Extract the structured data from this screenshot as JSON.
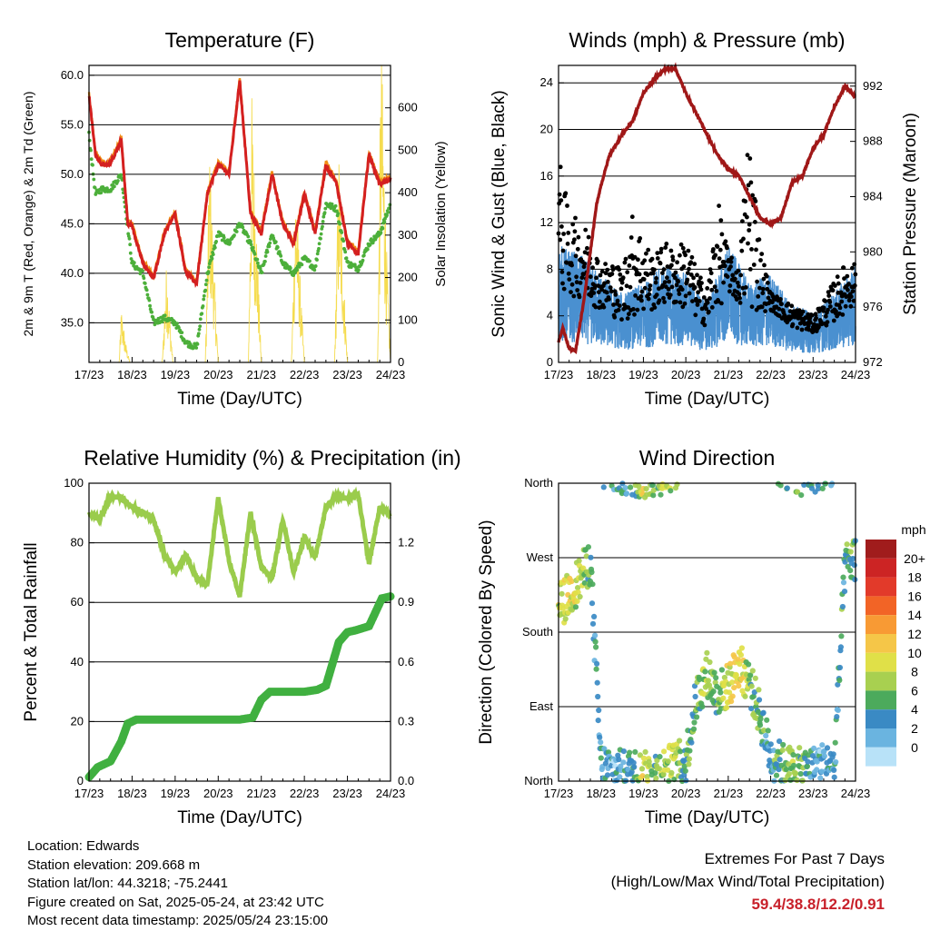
{
  "info": {
    "location": "Location: Edwards",
    "elevation": "Station elevation: 209.668 m",
    "latlon": "Station lat/lon: 44.3218; -75.2441",
    "created": "Figure created on Sat, 2025-05-24, at 23:42 UTC",
    "latest": "Most recent data timestamp: 2025/05/24 23:15:00"
  },
  "extremes": {
    "title": "Extremes For Past 7 Days",
    "subtitle": "(High/Low/Max Wind/Total Precipitation)",
    "values": "59.4/38.8/12.2/0.91"
  },
  "colors": {
    "temp_red": "#d42020",
    "temp_orange": "#f08c14",
    "dewpoint_green": "#4caf3a",
    "solar_yellow": "#f5dc50",
    "wind_blue": "#4a90d0",
    "gust_black": "#000000",
    "pressure_maroon": "#a01818",
    "rh_lightgreen": "#9acc4c",
    "precip_green": "#40b040"
  },
  "chart_data": [
    {
      "type": "line",
      "title": "Temperature (F)",
      "xlabel": "Time (Day/UTC)",
      "ylabel": "2m & 9m T (Red, Orange) & 2m Td (Green)",
      "y2label": "Solar Insolation (Yellow)",
      "categories": [
        "17/23",
        "18/23",
        "19/23",
        "20/23",
        "21/23",
        "22/23",
        "23/23",
        "24/23"
      ],
      "y_ticks": [
        "35.0",
        "40.0",
        "45.0",
        "50.0",
        "55.0",
        "60.0"
      ],
      "y2_ticks": [
        "0",
        "100",
        "200",
        "300",
        "400",
        "500",
        "600"
      ],
      "ylim": [
        31.0,
        61.0
      ],
      "y2lim": [
        0,
        700
      ],
      "grid": true,
      "series": [
        {
          "name": "2m T",
          "x": [
            0,
            0.15,
            0.3,
            0.45,
            0.6,
            0.75,
            0.9,
            1,
            1.25,
            1.5,
            1.75,
            2,
            2.25,
            2.5,
            2.75,
            3,
            3.25,
            3.5,
            3.75,
            4,
            4.25,
            4.5,
            4.75,
            5,
            5.25,
            5.5,
            5.75,
            6,
            6.25,
            6.5,
            6.75,
            7
          ],
          "values": [
            58.0,
            52.0,
            51.0,
            50.8,
            52.0,
            53.5,
            45.0,
            44.8,
            41.0,
            39.5,
            44.0,
            46.0,
            40.0,
            39.0,
            48.0,
            51.0,
            50.0,
            59.5,
            46.0,
            44.0,
            50.0,
            45.0,
            43.0,
            48.0,
            44.0,
            51.0,
            49.0,
            43.0,
            42.0,
            52.0,
            49.0,
            49.5
          ]
        },
        {
          "name": "2m Td",
          "x": [
            0,
            0.15,
            0.3,
            0.5,
            0.75,
            1,
            1.25,
            1.5,
            1.75,
            2,
            2.25,
            2.5,
            2.75,
            3,
            3.25,
            3.5,
            3.75,
            4,
            4.25,
            4.5,
            4.75,
            5,
            5.25,
            5.5,
            5.75,
            6,
            6.25,
            6.5,
            6.75,
            7
          ],
          "values": [
            54.0,
            48.0,
            48.5,
            48.5,
            50.0,
            41.0,
            40.0,
            35.0,
            35.5,
            35.0,
            33.0,
            32.5,
            40.0,
            44.0,
            43.0,
            45.0,
            43.0,
            40.0,
            44.0,
            41.0,
            40.0,
            41.5,
            40.5,
            47.0,
            46.5,
            41.0,
            40.5,
            43.0,
            44.0,
            47.0
          ]
        },
        {
          "name": "Solar Insolation",
          "x": [
            0.7,
            0.75,
            0.85,
            0.95,
            1.7,
            1.8,
            1.88,
            1.95,
            2.7,
            2.8,
            2.9,
            3.0,
            3.7,
            3.78,
            3.9,
            4.0,
            4.7,
            4.8,
            4.9,
            5.0,
            5.7,
            5.8,
            5.9,
            6.0,
            6.7,
            6.78,
            6.9,
            7.0
          ],
          "values": [
            0,
            110,
            40,
            0,
            0,
            200,
            90,
            0,
            0,
            430,
            200,
            0,
            0,
            530,
            250,
            0,
            0,
            380,
            170,
            0,
            0,
            420,
            200,
            0,
            0,
            660,
            250,
            0
          ]
        }
      ]
    },
    {
      "type": "scatter",
      "title": "Winds (mph) & Pressure (mb)",
      "xlabel": "Time (Day/UTC)",
      "ylabel": "Sonic Wind & Gust (Blue, Black)",
      "y2label": "Station Pressure (Maroon)",
      "categories": [
        "17/23",
        "18/23",
        "19/23",
        "20/23",
        "21/23",
        "22/23",
        "23/23",
        "24/23"
      ],
      "y_ticks": [
        "0",
        "4",
        "8",
        "12",
        "16",
        "20",
        "24"
      ],
      "y2_ticks": [
        "972",
        "976",
        "980",
        "984",
        "988",
        "992"
      ],
      "ylim": [
        0,
        25.5
      ],
      "y2lim": [
        972,
        993.5
      ],
      "grid": true,
      "series": [
        {
          "name": "Sonic Wind",
          "x": [
            0,
            0.5,
            1,
            1.5,
            2,
            2.5,
            3,
            3.5,
            4,
            4.5,
            5,
            5.5,
            6,
            6.5,
            7
          ],
          "values": [
            6.0,
            5.5,
            4.5,
            3.5,
            4.0,
            5.0,
            4.5,
            3.0,
            6.0,
            4.0,
            4.5,
            3.0,
            2.5,
            3.5,
            5.0
          ]
        },
        {
          "name": "Gust",
          "x": [
            0,
            0.25,
            0.5,
            0.75,
            1,
            1.25,
            1.5,
            1.75,
            2,
            2.25,
            2.5,
            2.75,
            3,
            3.25,
            3.5,
            3.75,
            4,
            4.25,
            4.5,
            4.75,
            5,
            5.25,
            5.5,
            5.75,
            6,
            6.25,
            6.5,
            6.75,
            7
          ],
          "values": [
            18.0,
            13.0,
            12.0,
            11.5,
            8.5,
            9.0,
            8.0,
            13.0,
            11.0,
            9.0,
            10.5,
            9.5,
            11.0,
            8.0,
            6.5,
            14.0,
            9.5,
            8.0,
            22.0,
            10.5,
            6.0,
            5.5,
            5.0,
            4.5,
            4.0,
            5.5,
            7.0,
            8.5,
            8.5
          ]
        },
        {
          "name": "Station Pressure",
          "x": [
            0,
            0.1,
            0.25,
            0.4,
            0.6,
            0.75,
            0.9,
            1,
            1.2,
            1.5,
            1.75,
            2,
            2.25,
            2.5,
            2.75,
            3,
            3.25,
            3.5,
            3.75,
            4,
            4.25,
            4.5,
            4.75,
            5,
            5.25,
            5.5,
            5.75,
            6,
            6.25,
            6.5,
            6.75,
            7
          ],
          "values": [
            973.5,
            974.5,
            973.0,
            972.8,
            976.5,
            980.0,
            983.5,
            984.8,
            987.0,
            988.5,
            989.5,
            991.5,
            992.5,
            993.2,
            993.3,
            991.5,
            990.0,
            988.5,
            987.0,
            986.0,
            985.5,
            984.0,
            982.5,
            982.0,
            982.5,
            985.0,
            985.5,
            987.5,
            988.5,
            990.5,
            992.0,
            991.2
          ]
        }
      ]
    },
    {
      "type": "line",
      "title": "Relative Humidity (%) & Precipitation (in)",
      "xlabel": "Time (Day/UTC)",
      "ylabel": "Percent & Total Rainfall",
      "categories": [
        "17/23",
        "18/23",
        "19/23",
        "20/23",
        "21/23",
        "22/23",
        "23/23",
        "24/23"
      ],
      "y_ticks": [
        "0",
        "20",
        "40",
        "60",
        "80",
        "100"
      ],
      "y2_ticks": [
        "0.0",
        "0.3",
        "0.6",
        "0.9",
        "1.2"
      ],
      "ylim": [
        0,
        100
      ],
      "y2lim": [
        0,
        1.5
      ],
      "grid": true,
      "series": [
        {
          "name": "Relative Humidity",
          "x": [
            0,
            0.25,
            0.5,
            0.75,
            1,
            1.25,
            1.5,
            1.75,
            2,
            2.25,
            2.5,
            2.75,
            3,
            3.25,
            3.5,
            3.75,
            4,
            4.25,
            4.5,
            4.75,
            5,
            5.25,
            5.5,
            5.75,
            6,
            6.25,
            6.5,
            6.75,
            7
          ],
          "values": [
            90.0,
            88.0,
            96.0,
            95.0,
            92.0,
            90.0,
            88.0,
            76.0,
            70.0,
            76.0,
            68.0,
            66.0,
            95.0,
            74.0,
            62.0,
            90.0,
            72.0,
            68.0,
            88.0,
            70.0,
            82.0,
            75.0,
            92.0,
            96.0,
            95.0,
            96.0,
            73.0,
            92.0,
            89.0
          ]
        },
        {
          "name": "Total Precipitation",
          "x": [
            0,
            0.2,
            0.5,
            0.75,
            0.9,
            1.1,
            1.5,
            2,
            2.5,
            3,
            3.5,
            3.8,
            4.0,
            4.2,
            4.5,
            5,
            5.3,
            5.5,
            5.8,
            6.0,
            6.2,
            6.5,
            6.8,
            7
          ],
          "values": [
            0.02,
            0.07,
            0.1,
            0.2,
            0.29,
            0.31,
            0.31,
            0.31,
            0.31,
            0.31,
            0.31,
            0.32,
            0.41,
            0.45,
            0.45,
            0.45,
            0.46,
            0.48,
            0.7,
            0.75,
            0.76,
            0.78,
            0.92,
            0.93
          ]
        }
      ]
    },
    {
      "type": "scatter",
      "title": "Wind Direction",
      "xlabel": "Time (Day/UTC)",
      "ylabel": "Direction (Colored By Speed)",
      "categories": [
        "17/23",
        "18/23",
        "19/23",
        "20/23",
        "21/23",
        "22/23",
        "23/23",
        "24/23"
      ],
      "y_ticks": [
        "North",
        "East",
        "South",
        "West",
        "North"
      ],
      "ylim": [
        0,
        360
      ],
      "grid": true,
      "legend": {
        "title": "mph",
        "labels": [
          "20+",
          "18",
          "16",
          "14",
          "12",
          "10",
          "8",
          "6",
          "4",
          "2",
          "0"
        ],
        "colors": [
          "#a01c1c",
          "#cc2424",
          "#e23a2a",
          "#f26426",
          "#f89a34",
          "#f5c648",
          "#e0e048",
          "#a8d050",
          "#4caa5c",
          "#3a8ac4",
          "#6ab4e0",
          "#b8e2f8"
        ],
        "placement": "right"
      },
      "series": [
        {
          "name": "Direction",
          "x": [
            0,
            0.25,
            0.5,
            0.75,
            1,
            1.25,
            1.5,
            1.75,
            2,
            2.25,
            2.5,
            2.75,
            3,
            3.25,
            3.5,
            3.75,
            4,
            4.25,
            4.5,
            4.75,
            5,
            5.25,
            5.5,
            5.75,
            6,
            6.25,
            6.5,
            6.75,
            7
          ],
          "values": [
            210,
            225,
            245,
            265,
            20,
            15,
            10,
            12,
            8,
            10,
            15,
            20,
            25,
            100,
            130,
            105,
            115,
            140,
            120,
            80,
            30,
            20,
            15,
            12,
            15,
            20,
            15,
            260,
            270
          ],
          "speeds": [
            9,
            10,
            9,
            5,
            4,
            3,
            4,
            5,
            11,
            6,
            8,
            9,
            5,
            7,
            8,
            6,
            9,
            12,
            7,
            5,
            4,
            6,
            8,
            6,
            3,
            3,
            4,
            5,
            6
          ]
        }
      ]
    }
  ]
}
